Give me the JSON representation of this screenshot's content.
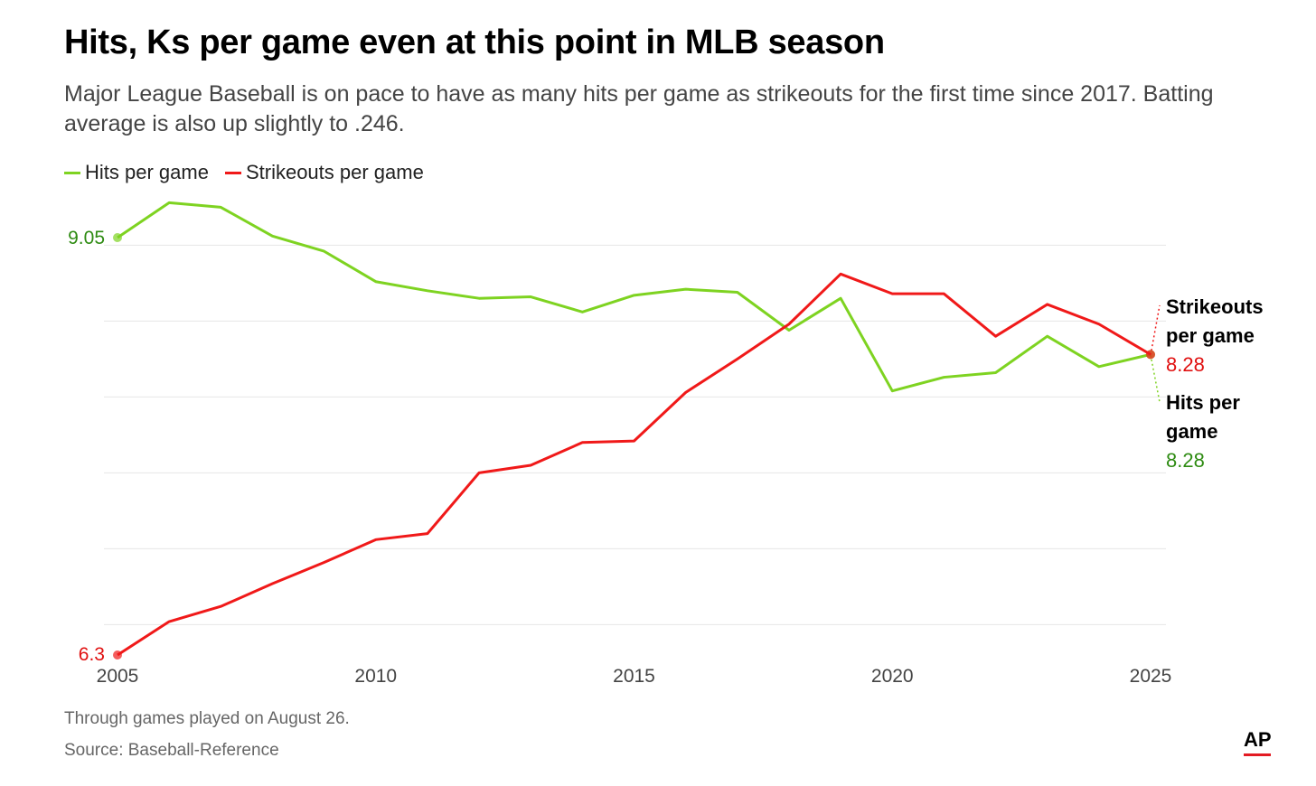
{
  "title": "Hits, Ks per game even at this point in MLB season",
  "subtitle": "Major League Baseball is on pace to have as many hits per game as strikeouts for the first time since 2017. Batting average is also up slightly to .246.",
  "legend": [
    {
      "label": "Hits per game",
      "color": "#7ed321"
    },
    {
      "label": "Strikeouts per game",
      "color": "#f01919"
    }
  ],
  "chart_data": {
    "type": "line",
    "title": "Hits, Ks per game even at this point in MLB season",
    "x": [
      2005,
      2006,
      2007,
      2008,
      2009,
      2010,
      2011,
      2012,
      2013,
      2014,
      2015,
      2016,
      2017,
      2018,
      2019,
      2020,
      2021,
      2022,
      2023,
      2024,
      2025
    ],
    "series": [
      {
        "name": "Hits per game",
        "color": "#7ed321",
        "values": [
          9.05,
          9.28,
          9.25,
          9.06,
          8.96,
          8.76,
          8.7,
          8.65,
          8.66,
          8.56,
          8.67,
          8.71,
          8.69,
          8.44,
          8.65,
          8.04,
          8.13,
          8.16,
          8.4,
          8.2,
          8.28
        ]
      },
      {
        "name": "Strikeouts per game",
        "color": "#f01919",
        "values": [
          6.3,
          6.52,
          6.62,
          6.77,
          6.91,
          7.06,
          7.1,
          7.5,
          7.55,
          7.7,
          7.71,
          8.03,
          8.25,
          8.48,
          8.81,
          8.68,
          8.68,
          8.4,
          8.61,
          8.48,
          8.28
        ]
      }
    ],
    "xticks": [
      "2005",
      "2010",
      "2015",
      "2020",
      "2025"
    ],
    "ylim": [
      6.3,
      9.05
    ],
    "ygrid": [
      6.5,
      7.0,
      7.5,
      8.0,
      8.5,
      9.0
    ],
    "start_labels": {
      "hits": "9.05",
      "strikeouts": "6.3"
    },
    "end_labels": {
      "strikeouts": {
        "line1": "Strikeouts",
        "line2": "per game",
        "value": "8.28"
      },
      "hits": {
        "line1": "Hits per",
        "line2": "game",
        "value": "8.28"
      }
    },
    "grid": true,
    "legend_position": "top-left"
  },
  "footer": {
    "note": "Through games played on August 26.",
    "source": "Source: Baseball-Reference",
    "logo": "AP"
  }
}
